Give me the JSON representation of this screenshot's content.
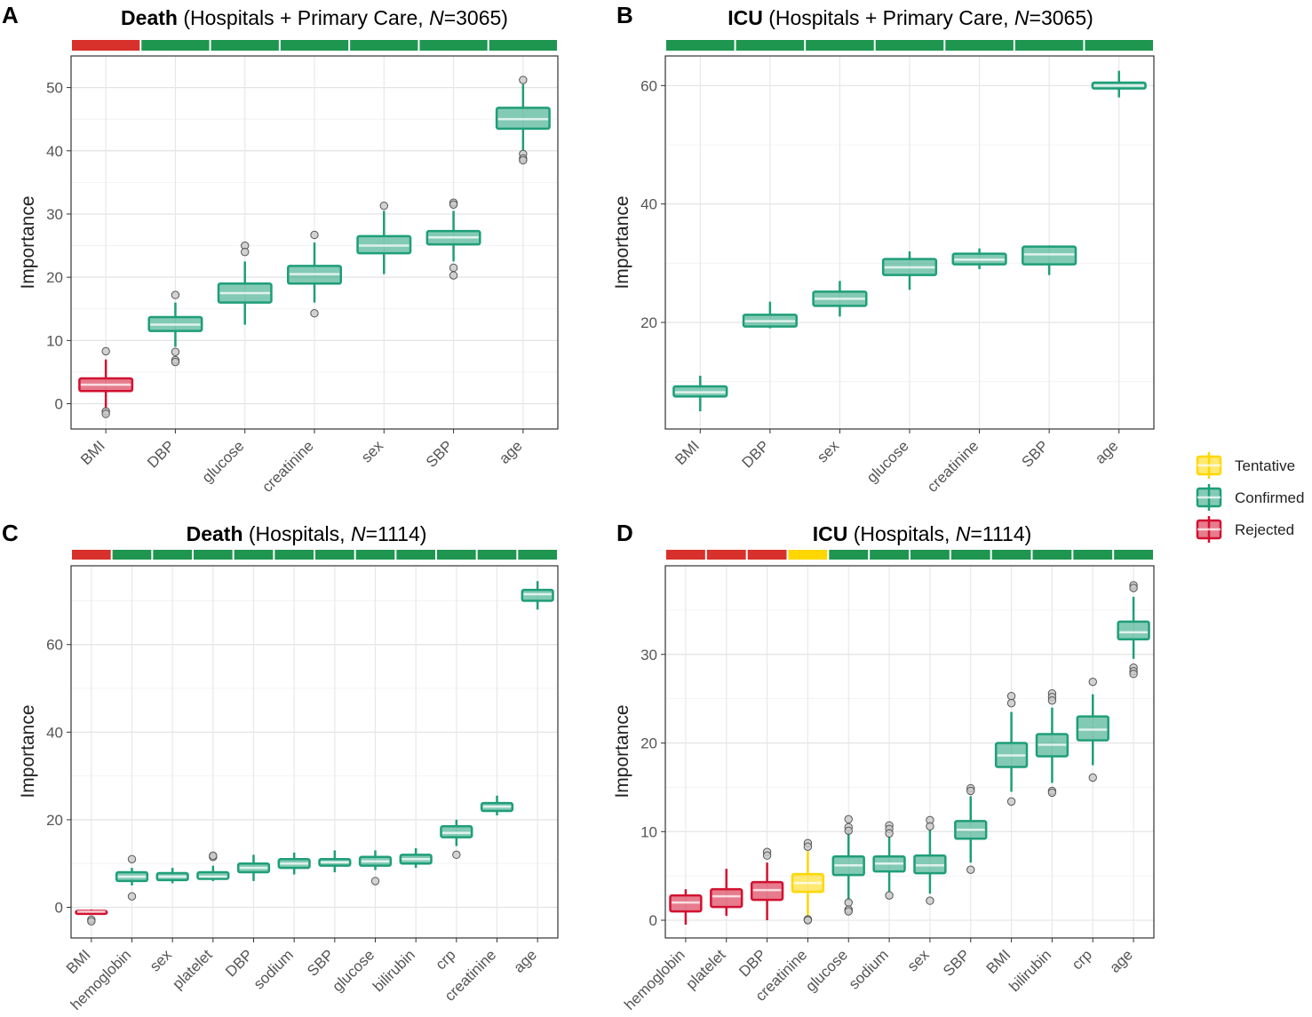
{
  "legend": {
    "items": [
      {
        "label": "Tentative",
        "color": "#FFD700"
      },
      {
        "label": "Confirmed",
        "color": "#1E9E78"
      },
      {
        "label": "Rejected",
        "color": "#D21130"
      }
    ]
  },
  "colors": {
    "Confirmed": "#1E9E78",
    "Rejected": "#D21130",
    "Tentative": "#FFD700",
    "strip_confirmed": "#1E9650",
    "strip_rejected": "#D8302A"
  },
  "chart_data": [
    {
      "panel": "A",
      "type": "boxplot",
      "title_bold": "Death",
      "title_pre": " (Hospitals + Primary Care, ",
      "title_n_label": "N",
      "title_post": "=3065)",
      "ylabel": "Importance",
      "ylim": [
        -4,
        55
      ],
      "yticks": [
        0,
        10,
        20,
        30,
        40,
        50
      ],
      "items": [
        {
          "name": "BMI",
          "status": "Rejected",
          "min": -1,
          "q1": 2,
          "median": 3,
          "q3": 4,
          "max": 7,
          "outliers": [
            8.3,
            -1.2,
            -1.6
          ]
        },
        {
          "name": "DBP",
          "status": "Confirmed",
          "min": 9,
          "q1": 11.5,
          "median": 12.5,
          "q3": 13.7,
          "max": 16,
          "outliers": [
            17.2,
            8.2,
            6.9,
            6.6
          ]
        },
        {
          "name": "glucose",
          "status": "Confirmed",
          "min": 12.5,
          "q1": 16,
          "median": 17.5,
          "q3": 19,
          "max": 22.5,
          "outliers": [
            25,
            24
          ]
        },
        {
          "name": "creatinine",
          "status": "Confirmed",
          "min": 16,
          "q1": 19,
          "median": 20.5,
          "q3": 21.8,
          "max": 25.5,
          "outliers": [
            26.7,
            14.3
          ]
        },
        {
          "name": "sex",
          "status": "Confirmed",
          "min": 20.5,
          "q1": 23.8,
          "median": 25,
          "q3": 26.5,
          "max": 30.5,
          "outliers": [
            31.3
          ]
        },
        {
          "name": "SBP",
          "status": "Confirmed",
          "min": 22.5,
          "q1": 25.2,
          "median": 26.3,
          "q3": 27.3,
          "max": 30.5,
          "outliers": [
            31.8,
            31.5,
            21.5,
            20.3
          ]
        },
        {
          "name": "age",
          "status": "Confirmed",
          "min": 40,
          "q1": 43.5,
          "median": 45,
          "q3": 46.8,
          "max": 50.5,
          "outliers": [
            51.2,
            39.5,
            38.8,
            38.5
          ]
        }
      ]
    },
    {
      "panel": "B",
      "type": "boxplot",
      "title_bold": "ICU",
      "title_pre": " (Hospitals + Primary Care, ",
      "title_n_label": "N",
      "title_post": "=3065)",
      "ylabel": "Importance",
      "ylim": [
        2,
        65
      ],
      "yticks": [
        20,
        40,
        60
      ],
      "items": [
        {
          "name": "BMI",
          "status": "Confirmed",
          "min": 5,
          "q1": 7.5,
          "median": 8.2,
          "q3": 9.2,
          "max": 11,
          "outliers": []
        },
        {
          "name": "DBP",
          "status": "Confirmed",
          "min": 19,
          "q1": 19.3,
          "median": 20.2,
          "q3": 21.3,
          "max": 23.5,
          "outliers": []
        },
        {
          "name": "sex",
          "status": "Confirmed",
          "min": 21,
          "q1": 22.8,
          "median": 24,
          "q3": 25.2,
          "max": 27,
          "outliers": []
        },
        {
          "name": "glucose",
          "status": "Confirmed",
          "min": 25.5,
          "q1": 28,
          "median": 29.3,
          "q3": 30.7,
          "max": 32,
          "outliers": []
        },
        {
          "name": "creatinine",
          "status": "Confirmed",
          "min": 29,
          "q1": 29.8,
          "median": 30.6,
          "q3": 31.6,
          "max": 32.5,
          "outliers": []
        },
        {
          "name": "SBP",
          "status": "Confirmed",
          "min": 28,
          "q1": 29.8,
          "median": 31.5,
          "q3": 32.8,
          "max": 33,
          "outliers": []
        },
        {
          "name": "age",
          "status": "Confirmed",
          "min": 58,
          "q1": 59.5,
          "median": 60,
          "q3": 60.5,
          "max": 62.5,
          "outliers": []
        }
      ]
    },
    {
      "panel": "C",
      "type": "boxplot",
      "title_bold": "Death",
      "title_pre": " (Hospitals, ",
      "title_n_label": "N",
      "title_post": "=1114)",
      "ylabel": "Importance",
      "ylim": [
        -7,
        78
      ],
      "yticks": [
        0,
        20,
        40,
        60
      ],
      "items": [
        {
          "name": "BMI",
          "status": "Rejected",
          "min": -1.5,
          "q1": -1.5,
          "median": -1,
          "q3": -0.8,
          "max": -0.5,
          "outliers": [
            -2.8,
            -3.2
          ]
        },
        {
          "name": "hemoglobin",
          "status": "Confirmed",
          "min": 5,
          "q1": 6,
          "median": 7,
          "q3": 8,
          "max": 9,
          "outliers": [
            11,
            2.5
          ]
        },
        {
          "name": "sex",
          "status": "Confirmed",
          "min": 5.5,
          "q1": 6.2,
          "median": 7,
          "q3": 7.8,
          "max": 9,
          "outliers": []
        },
        {
          "name": "platelet",
          "status": "Confirmed",
          "min": 6,
          "q1": 6.5,
          "median": 7,
          "q3": 8,
          "max": 9.5,
          "outliers": [
            11.5,
            11.8
          ]
        },
        {
          "name": "DBP",
          "status": "Confirmed",
          "min": 6,
          "q1": 8,
          "median": 9,
          "q3": 10,
          "max": 12,
          "outliers": []
        },
        {
          "name": "sodium",
          "status": "Confirmed",
          "min": 7.5,
          "q1": 9,
          "median": 10,
          "q3": 11,
          "max": 12.5,
          "outliers": []
        },
        {
          "name": "SBP",
          "status": "Confirmed",
          "min": 8,
          "q1": 9.5,
          "median": 10.3,
          "q3": 11,
          "max": 13,
          "outliers": []
        },
        {
          "name": "glucose",
          "status": "Confirmed",
          "min": 8.5,
          "q1": 9.5,
          "median": 10.5,
          "q3": 11.5,
          "max": 13,
          "outliers": [
            6
          ]
        },
        {
          "name": "bilirubin",
          "status": "Confirmed",
          "min": 9,
          "q1": 10,
          "median": 11,
          "q3": 12,
          "max": 13.5,
          "outliers": []
        },
        {
          "name": "crp",
          "status": "Confirmed",
          "min": 14,
          "q1": 16,
          "median": 17,
          "q3": 18.5,
          "max": 20,
          "outliers": [
            12
          ]
        },
        {
          "name": "creatinine",
          "status": "Confirmed",
          "min": 21,
          "q1": 22,
          "median": 23,
          "q3": 23.8,
          "max": 25.5,
          "outliers": []
        },
        {
          "name": "age",
          "status": "Confirmed",
          "min": 68,
          "q1": 70,
          "median": 71.5,
          "q3": 72.5,
          "max": 74.5,
          "outliers": []
        }
      ]
    },
    {
      "panel": "D",
      "type": "boxplot",
      "title_bold": "ICU",
      "title_pre": " (Hospitals, ",
      "title_n_label": "N",
      "title_post": "=1114)",
      "ylabel": "Importance",
      "ylim": [
        -2,
        40
      ],
      "yticks": [
        0,
        10,
        20,
        30
      ],
      "items": [
        {
          "name": "hemoglobin",
          "status": "Rejected",
          "min": -0.5,
          "q1": 1,
          "median": 2,
          "q3": 2.8,
          "max": 3.5,
          "outliers": []
        },
        {
          "name": "platelet",
          "status": "Rejected",
          "min": 0.5,
          "q1": 1.5,
          "median": 2.7,
          "q3": 3.5,
          "max": 5.8,
          "outliers": []
        },
        {
          "name": "DBP",
          "status": "Rejected",
          "min": 0,
          "q1": 2.3,
          "median": 3.4,
          "q3": 4.3,
          "max": 6.5,
          "outliers": [
            7.7,
            7.3
          ]
        },
        {
          "name": "creatinine",
          "status": "Tentative",
          "min": 0.5,
          "q1": 3.2,
          "median": 4.2,
          "q3": 5.2,
          "max": 7.8,
          "outliers": [
            8.7,
            8.3,
            0.1,
            0
          ]
        },
        {
          "name": "glucose",
          "status": "Confirmed",
          "min": 2.2,
          "q1": 5.1,
          "median": 6.2,
          "q3": 7.2,
          "max": 10,
          "outliers": [
            11.4,
            10.5,
            10.1,
            2,
            1.2,
            1
          ]
        },
        {
          "name": "sodium",
          "status": "Confirmed",
          "min": 3.2,
          "q1": 5.5,
          "median": 6.4,
          "q3": 7.2,
          "max": 9.5,
          "outliers": [
            10.7,
            10.3,
            9.8,
            2.8
          ]
        },
        {
          "name": "sex",
          "status": "Confirmed",
          "min": 3,
          "q1": 5.3,
          "median": 6.2,
          "q3": 7.3,
          "max": 10.2,
          "outliers": [
            11.3,
            10.6,
            2.2
          ]
        },
        {
          "name": "SBP",
          "status": "Confirmed",
          "min": 6.5,
          "q1": 9.2,
          "median": 10.2,
          "q3": 11.2,
          "max": 14,
          "outliers": [
            14.9,
            14.6,
            5.7
          ]
        },
        {
          "name": "BMI",
          "status": "Confirmed",
          "min": 14.5,
          "q1": 17.3,
          "median": 18.6,
          "q3": 20,
          "max": 23.5,
          "outliers": [
            25.3,
            24.5,
            13.4
          ]
        },
        {
          "name": "bilirubin",
          "status": "Confirmed",
          "min": 15.5,
          "q1": 18.5,
          "median": 19.8,
          "q3": 21,
          "max": 24,
          "outliers": [
            25.6,
            25.2,
            24.8,
            14.6,
            14.4
          ]
        },
        {
          "name": "crp",
          "status": "Confirmed",
          "min": 17.5,
          "q1": 20.3,
          "median": 21.5,
          "q3": 23,
          "max": 25.5,
          "outliers": [
            26.9,
            16.1
          ]
        },
        {
          "name": "age",
          "status": "Confirmed",
          "min": 29.5,
          "q1": 31.7,
          "median": 32.5,
          "q3": 33.7,
          "max": 36.5,
          "outliers": [
            37.8,
            37.5,
            28.5,
            28.1,
            27.8
          ]
        }
      ]
    }
  ]
}
